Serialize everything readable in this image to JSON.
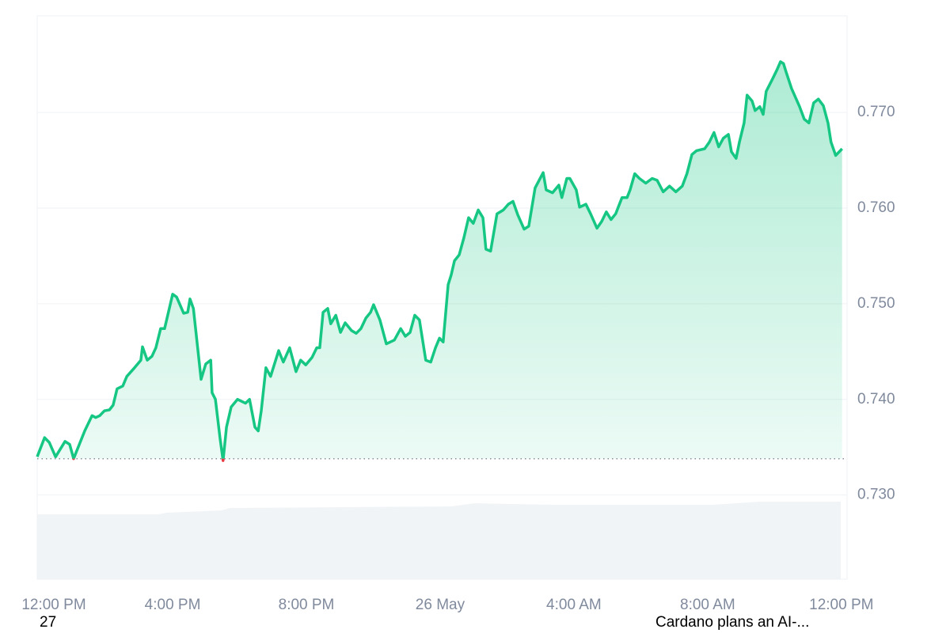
{
  "chart_data": {
    "type": "line",
    "x": [
      -0.05,
      0.17,
      0.31,
      0.5,
      0.78,
      0.92,
      1.04,
      1.21,
      1.37,
      1.59,
      1.7,
      1.82,
      1.96,
      2.11,
      2.22,
      2.34,
      2.51,
      2.63,
      2.86,
      3.05,
      3.1,
      3.24,
      3.38,
      3.5,
      3.64,
      3.76,
      4.0,
      4.12,
      4.33,
      4.45,
      4.52,
      4.62,
      4.85,
      4.99,
      5.14,
      5.18,
      5.28,
      5.42,
      5.51,
      5.61,
      5.75,
      5.94,
      6.18,
      6.3,
      6.46,
      6.56,
      6.65,
      6.79,
      6.93,
      7.17,
      7.31,
      7.5,
      7.69,
      7.83,
      7.98,
      8.17,
      8.31,
      8.4,
      8.5,
      8.64,
      8.73,
      8.88,
      9.02,
      9.16,
      9.35,
      9.49,
      9.63,
      9.78,
      9.92,
      10.01,
      10.2,
      10.39,
      10.63,
      10.82,
      10.96,
      11.1,
      11.24,
      11.38,
      11.57,
      11.72,
      11.86,
      11.98,
      12.09,
      12.24,
      12.33,
      12.43,
      12.57,
      12.71,
      12.85,
      12.99,
      13.14,
      13.28,
      13.37,
      13.51,
      13.7,
      13.89,
      14.04,
      14.18,
      14.32,
      14.51,
      14.65,
      14.84,
      15.08,
      15.17,
      15.36,
      15.55,
      15.64,
      15.79,
      15.88,
      16.07,
      16.17,
      16.36,
      16.5,
      16.69,
      16.83,
      16.97,
      17.11,
      17.25,
      17.44,
      17.59,
      17.68,
      17.82,
      17.96,
      18.15,
      18.34,
      18.49,
      18.67,
      18.86,
      19.05,
      19.24,
      19.38,
      19.53,
      19.67,
      19.91,
      20.05,
      20.19,
      20.33,
      20.47,
      20.62,
      20.71,
      20.85,
      20.95,
      21.09,
      21.18,
      21.33,
      21.42,
      21.56,
      21.66,
      21.75,
      21.94,
      22.08,
      22.18,
      22.27,
      22.34,
      22.51,
      22.75,
      22.89,
      23.03,
      23.17,
      23.31,
      23.46,
      23.6,
      23.69,
      23.83,
      24.02
    ],
    "values": [
      0.734,
      0.736,
      0.7355,
      0.734,
      0.7356,
      0.7353,
      0.7338,
      0.7353,
      0.7367,
      0.7383,
      0.7381,
      0.7383,
      0.7388,
      0.7389,
      0.7394,
      0.7411,
      0.7414,
      0.7424,
      0.7433,
      0.7441,
      0.7455,
      0.7441,
      0.7445,
      0.7454,
      0.7474,
      0.7474,
      0.751,
      0.7507,
      0.749,
      0.7491,
      0.7505,
      0.7495,
      0.7421,
      0.7437,
      0.7441,
      0.7407,
      0.74,
      0.7359,
      0.7336,
      0.7371,
      0.7392,
      0.74,
      0.7396,
      0.74,
      0.7371,
      0.7367,
      0.7388,
      0.7433,
      0.7424,
      0.7451,
      0.7439,
      0.7454,
      0.7429,
      0.7441,
      0.7436,
      0.7444,
      0.7454,
      0.7454,
      0.7491,
      0.7495,
      0.7479,
      0.7488,
      0.747,
      0.748,
      0.7472,
      0.7469,
      0.7474,
      0.7485,
      0.7491,
      0.7499,
      0.7483,
      0.7458,
      0.7462,
      0.7474,
      0.7466,
      0.747,
      0.7488,
      0.7483,
      0.7441,
      0.7439,
      0.7454,
      0.7464,
      0.746,
      0.752,
      0.753,
      0.7545,
      0.7551,
      0.7569,
      0.759,
      0.7584,
      0.7598,
      0.759,
      0.7557,
      0.7555,
      0.7594,
      0.7598,
      0.7604,
      0.7607,
      0.7593,
      0.7578,
      0.7581,
      0.7621,
      0.7637,
      0.7619,
      0.7616,
      0.7624,
      0.7611,
      0.7631,
      0.7631,
      0.7619,
      0.7601,
      0.7604,
      0.7594,
      0.7579,
      0.7586,
      0.7596,
      0.7588,
      0.7594,
      0.7611,
      0.7611,
      0.7619,
      0.7636,
      0.7631,
      0.7626,
      0.7631,
      0.7629,
      0.7617,
      0.7623,
      0.7617,
      0.7623,
      0.7636,
      0.7656,
      0.766,
      0.7662,
      0.7669,
      0.7679,
      0.7664,
      0.7673,
      0.7677,
      0.7659,
      0.7652,
      0.7669,
      0.7689,
      0.7718,
      0.7712,
      0.7702,
      0.7706,
      0.7698,
      0.7722,
      0.7735,
      0.7745,
      0.7753,
      0.7751,
      0.7743,
      0.7725,
      0.7706,
      0.7693,
      0.7689,
      0.771,
      0.7714,
      0.7707,
      0.7689,
      0.7669,
      0.7655,
      0.7662
    ],
    "color": "#16c784",
    "below_color": "#ea3943",
    "baseline": 0.7338,
    "xlim": [
      -0.05,
      24.17
    ],
    "xticks": [
      {
        "value": 0,
        "label": "12:00 PM"
      },
      {
        "value": 4,
        "label": "4:00 PM"
      },
      {
        "value": 8,
        "label": "8:00 PM"
      },
      {
        "value": 12,
        "label": "26 May"
      },
      {
        "value": 16,
        "label": "4:00 AM"
      },
      {
        "value": 20,
        "label": "8:00 AM"
      },
      {
        "value": 24,
        "label": "12:00 PM"
      }
    ],
    "ylim": [
      0.7212,
      0.7801
    ],
    "yticks": [
      {
        "value": 0.73,
        "label": "0.730"
      },
      {
        "value": 0.74,
        "label": "0.740"
      },
      {
        "value": 0.75,
        "label": "0.750"
      },
      {
        "value": 0.76,
        "label": "0.760"
      },
      {
        "value": 0.77,
        "label": "0.770"
      }
    ],
    "grid": true,
    "annotations": [
      "27",
      "Cardano plans an AI-..."
    ]
  }
}
